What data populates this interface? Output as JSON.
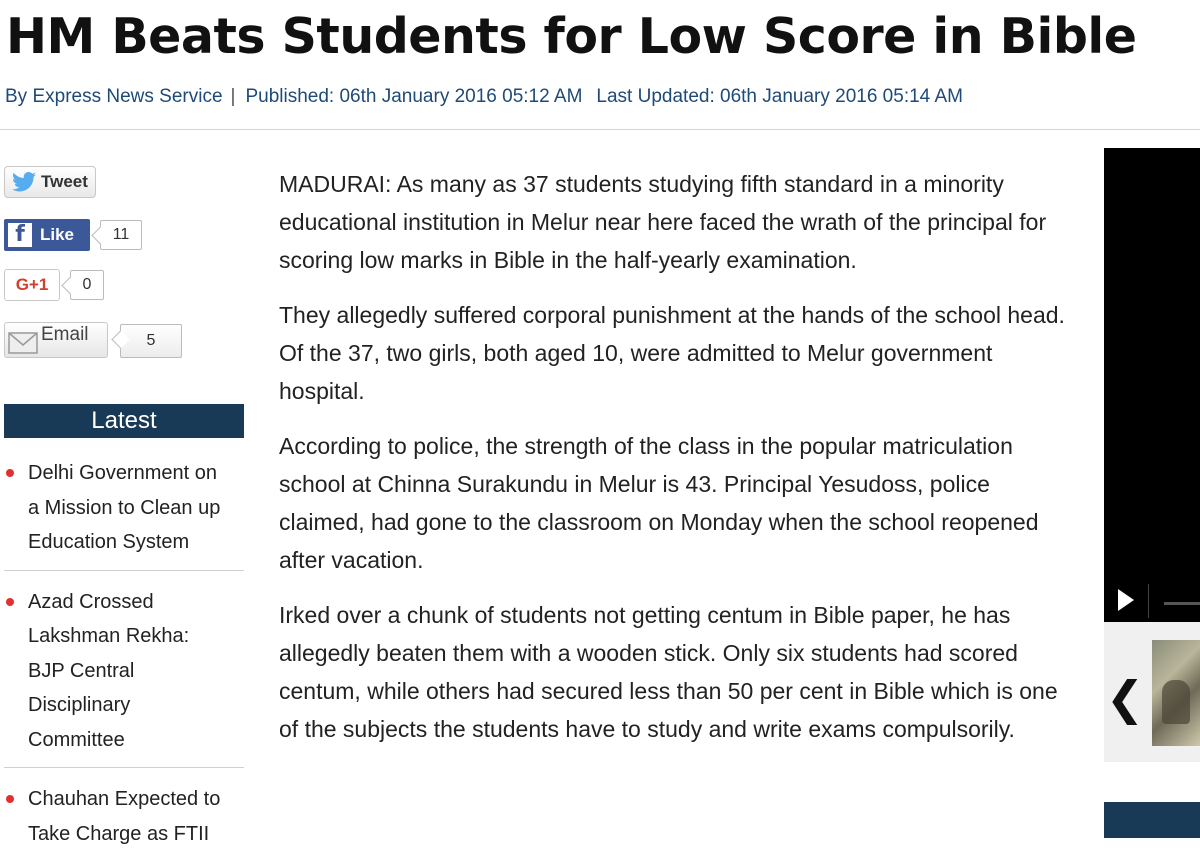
{
  "article": {
    "headline": "HM Beats Students for Low Score in Bible",
    "byline": {
      "author": "By Express News Service",
      "separator": "|",
      "published": "Published: 06th January 2016 05:12 AM",
      "updated": "Last Updated: 06th January 2016 05:14 AM"
    },
    "paragraphs": [
      "MADURAI:  As many as 37 students studying fifth standard in a minority educational institution in Melur near here faced the wrath of the principal for scoring low marks in Bible in the half-yearly examination.",
      "They allegedly suffered corporal punishment at the hands of the school head. Of the 37, two girls, both aged 10, were admitted to Melur government hospital.",
      "According to police, the strength of the class in the popular matriculation school at Chinna Surakundu in Melur is 43. Principal Yesudoss, police claimed, had gone to the classroom on Monday when the school reopened after vacation.",
      "Irked over a chunk of students not getting centum in Bible paper, he has allegedly beaten them with a wooden stick. Only six students had scored centum, while others had secured less than 50 per cent in Bible which is one of the subjects the students have to study and write exams compulsorily."
    ]
  },
  "social": {
    "tweet_label": "Tweet",
    "like_label": "Like",
    "like_count": "11",
    "gplus_label": "G+1",
    "gplus_count": "0",
    "email_label": "Email",
    "email_count": "5",
    "icons": [
      "twitter-bird-icon",
      "facebook-f-icon",
      "envelope-icon"
    ],
    "colors": {
      "facebook": "#3b5998",
      "gplus": "#d23f31",
      "twitter": "#55acee"
    }
  },
  "latest": {
    "heading": "Latest",
    "items": [
      [
        "Delhi Government on",
        "a Mission to Clean up",
        "Education System"
      ],
      [
        "Azad Crossed",
        "Lakshman Rekha:",
        "BJP Central",
        "Disciplinary",
        "Committee"
      ],
      [
        "Chauhan Expected to",
        "Take Charge as FTII"
      ]
    ],
    "bullet_color": "#e0302f",
    "heading_bg": "#183a57"
  },
  "player": {
    "icons": [
      "play-icon",
      "chevron-left-icon"
    ],
    "prev_glyph": "❮"
  }
}
